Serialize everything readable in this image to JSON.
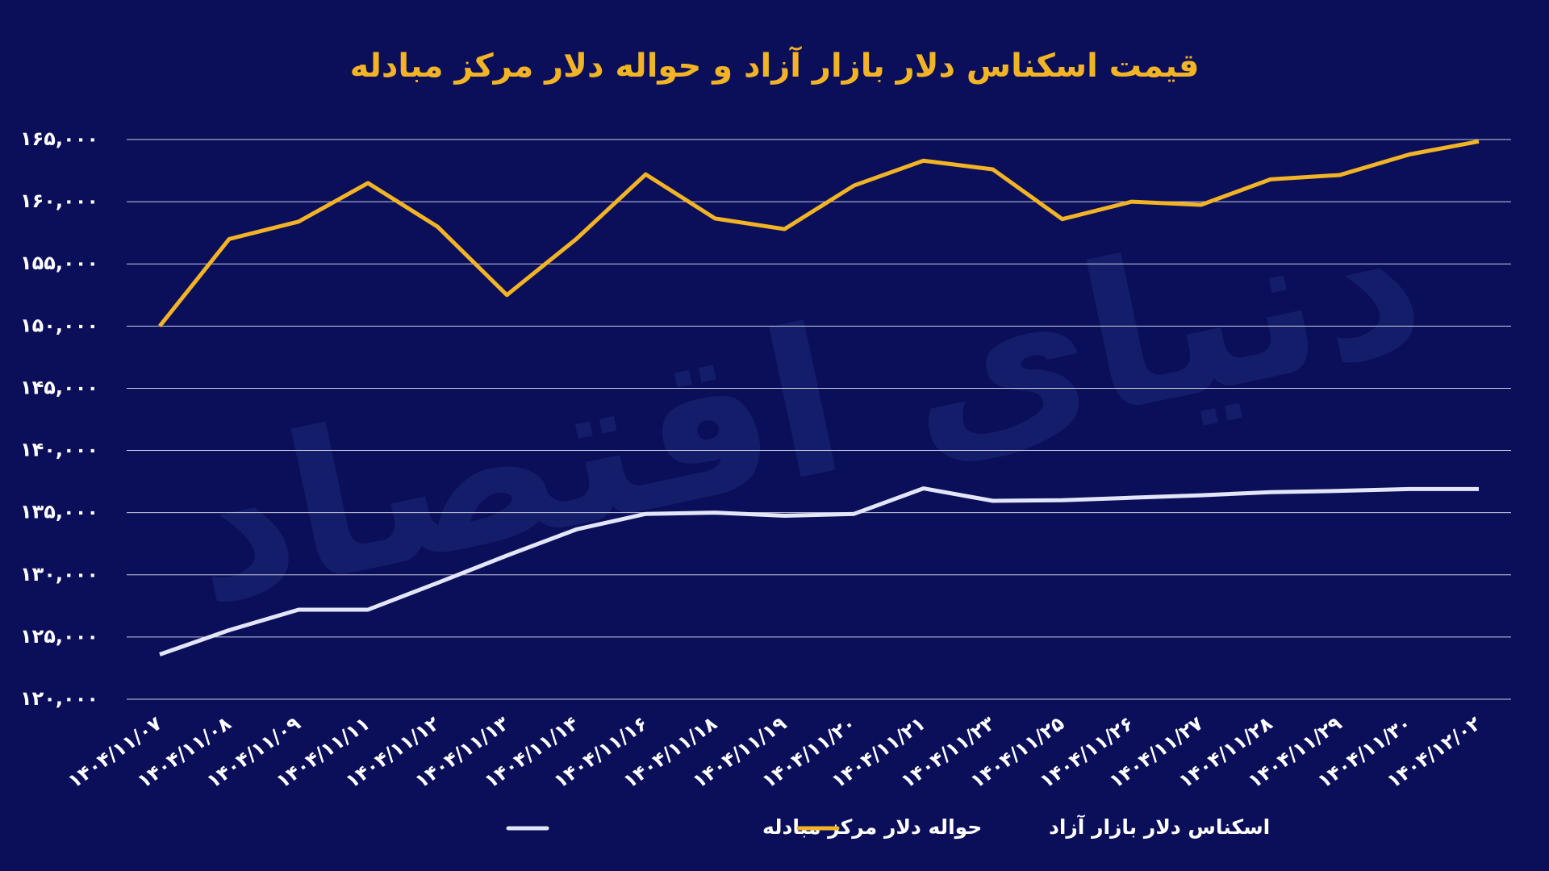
{
  "chart_data": {
    "type": "line",
    "title": "قیمت اسکناس دلار بازار آزاد و حواله دلار مرکز مبادله",
    "watermark": "دنیای اقتصاد",
    "categories": [
      "۱۴۰۴/۱۱/۰۷",
      "۱۴۰۴/۱۱/۰۸",
      "۱۴۰۴/۱۱/۰۹",
      "۱۴۰۴/۱۱/۱۱",
      "۱۴۰۴/۱۱/۱۲",
      "۱۴۰۴/۱۱/۱۳",
      "۱۴۰۴/۱۱/۱۴",
      "۱۴۰۴/۱۱/۱۶",
      "۱۴۰۴/۱۱/۱۸",
      "۱۴۰۴/۱۱/۱۹",
      "۱۴۰۴/۱۱/۲۰",
      "۱۴۰۴/۱۱/۲۱",
      "۱۴۰۴/۱۱/۲۳",
      "۱۴۰۴/۱۱/۲۵",
      "۱۴۰۴/۱۱/۲۶",
      "۱۴۰۴/۱۱/۲۷",
      "۱۴۰۴/۱۱/۲۸",
      "۱۴۰۴/۱۱/۲۹",
      "۱۴۰۴/۱۱/۳۰",
      "۱۴۰۴/۱۲/۰۲"
    ],
    "series": [
      {
        "name": "حواله دلار مرکز مبادله",
        "color": "#e3e6f7",
        "values": [
          123600,
          125550,
          127200,
          127200,
          129350,
          131550,
          133650,
          134900,
          135000,
          134750,
          134900,
          136950,
          135950,
          136000,
          136200,
          136400,
          136650,
          136750,
          136900,
          136900
        ]
      },
      {
        "name": "اسکناس دلار بازار آزاد",
        "color": "#f2b425",
        "values": [
          150000,
          157000,
          158400,
          161500,
          158000,
          152500,
          157000,
          162200,
          158650,
          157800,
          161300,
          163300,
          162600,
          158600,
          160000,
          159750,
          161800,
          162150,
          163800,
          164850
        ]
      }
    ],
    "ylim": [
      120000,
      165000
    ],
    "yticks": [
      {
        "value": 120000,
        "label": "۱۲۰,۰۰۰"
      },
      {
        "value": 125000,
        "label": "۱۲۵,۰۰۰"
      },
      {
        "value": 130000,
        "label": "۱۳۰,۰۰۰"
      },
      {
        "value": 135000,
        "label": "۱۳۵,۰۰۰"
      },
      {
        "value": 140000,
        "label": "۱۴۰,۰۰۰"
      },
      {
        "value": 145000,
        "label": "۱۴۵,۰۰۰"
      },
      {
        "value": 150000,
        "label": "۱۵۰,۰۰۰"
      },
      {
        "value": 155000,
        "label": "۱۵۵,۰۰۰"
      },
      {
        "value": 160000,
        "label": "۱۶۰,۰۰۰"
      },
      {
        "value": 165000,
        "label": "۱۶۵,۰۰۰"
      }
    ],
    "grid": true
  }
}
